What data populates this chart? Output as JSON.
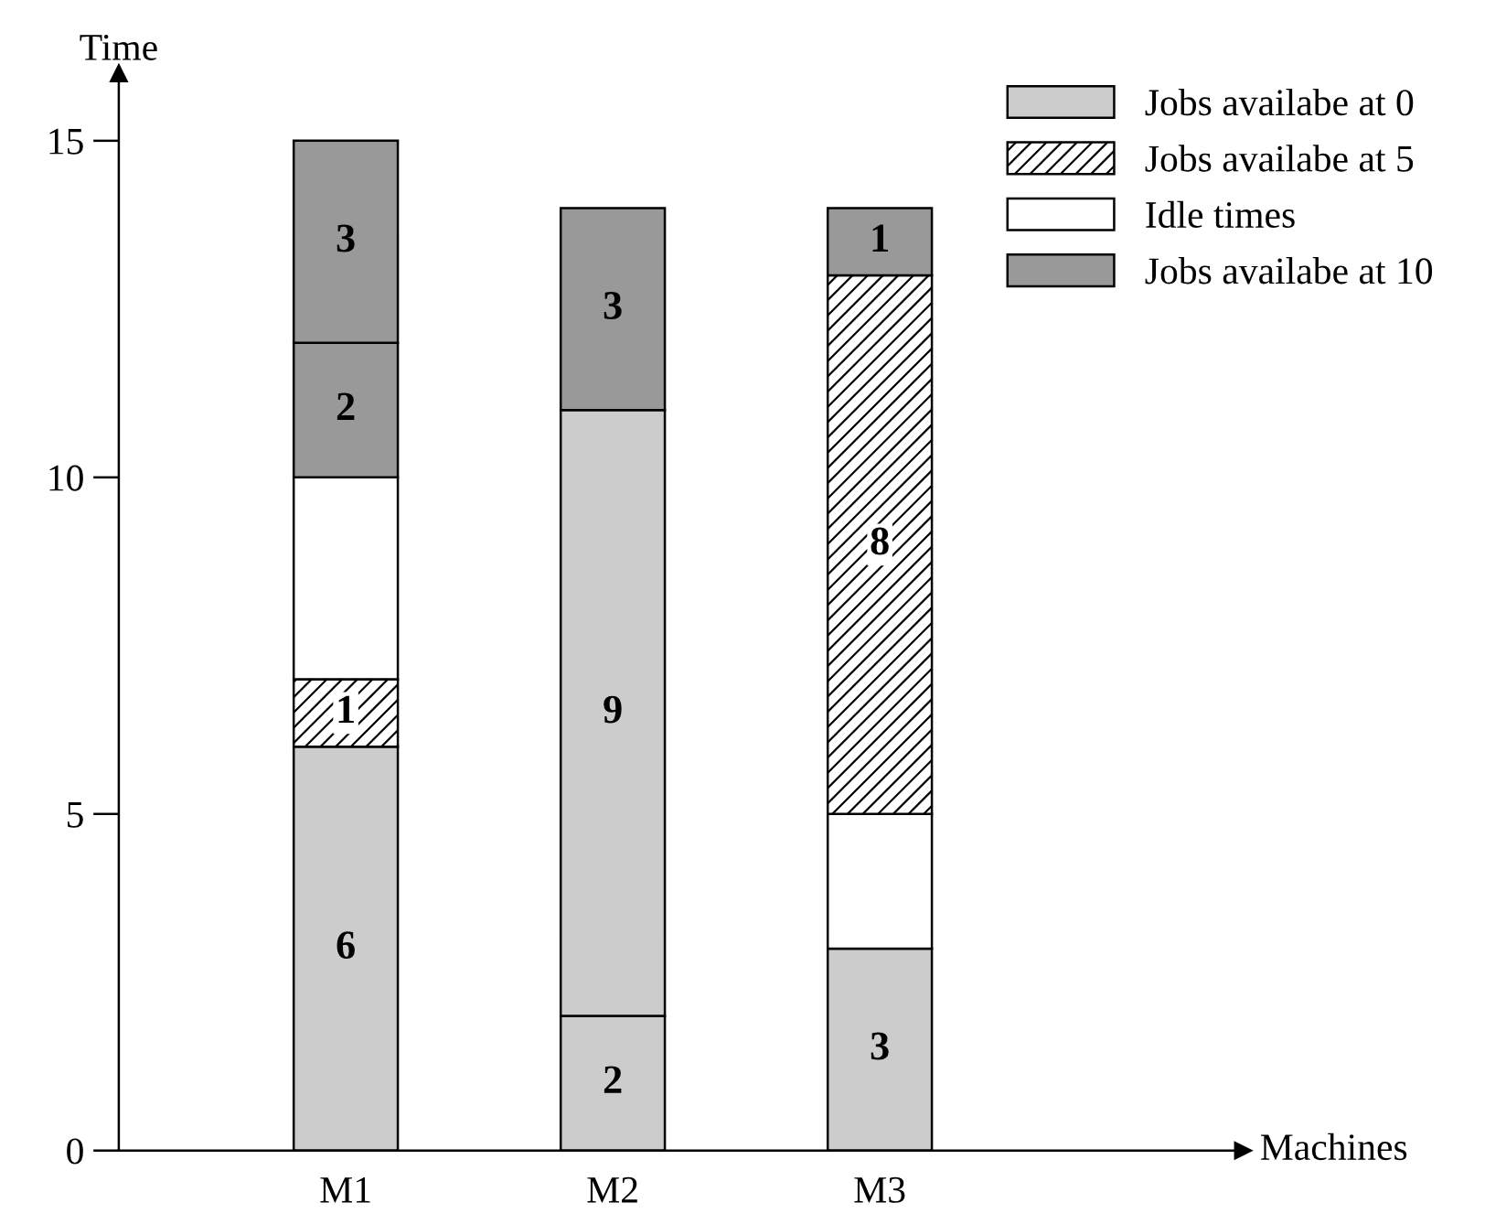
{
  "chart_data": {
    "type": "bar",
    "stacked": true,
    "annotations": [
      "Machines"
    ],
    "ylabel": "Time",
    "categories": [
      "M1",
      "M2",
      "M3"
    ],
    "series": [
      {
        "name": "Jobs availabe at 0",
        "color": "#cccccc",
        "values": [
          6,
          2,
          3
        ],
        "value_labels": [
          "6",
          "2",
          "3"
        ]
      },
      {
        "color": "#cccccc",
        "values": [
          null,
          9,
          null
        ],
        "value_labels": [
          null,
          "9",
          null
        ]
      },
      {
        "name": "Jobs availabe at 5",
        "color": "#000000",
        "values": [
          1,
          null,
          null
        ],
        "value_labels": [
          "1",
          null,
          null
        ]
      },
      {
        "name": "Idle times",
        "color": "#ffffff",
        "values": [
          3,
          null,
          2
        ],
        "value_labels": [
          null,
          null,
          null
        ]
      },
      {
        "color": "#000000",
        "values": [
          null,
          null,
          8
        ],
        "value_labels": [
          null,
          null,
          "8"
        ]
      },
      {
        "name": "Jobs availabe at 10",
        "color": "#999999",
        "values": [
          2,
          3,
          1
        ],
        "value_labels": [
          "2",
          "3",
          "1"
        ]
      },
      {
        "color": "#999999",
        "values": [
          3,
          null,
          null
        ],
        "value_labels": [
          "3",
          null,
          null
        ]
      }
    ],
    "ylim": [
      0,
      16
    ],
    "yticks": [
      0,
      5,
      10,
      15
    ],
    "grid": false,
    "legend": "top right"
  }
}
